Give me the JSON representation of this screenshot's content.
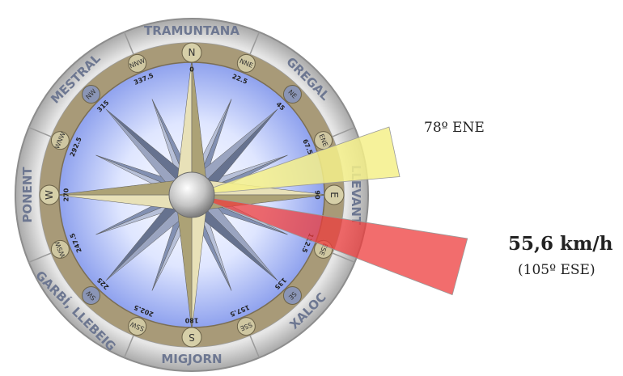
{
  "winds": [
    "TRAMUNTANA",
    "GREGAL",
    "LLEVANT",
    "XALOC",
    "MIGJORN",
    "GARBÍ, LLEBEIG",
    "PONENT",
    "MESTRAL"
  ],
  "points16": [
    "N",
    "NNE",
    "NE",
    "ENE",
    "E",
    "ESE",
    "SE",
    "SSE",
    "S",
    "SSW",
    "SW",
    "WSW",
    "W",
    "WNW",
    "NW",
    "NNW"
  ],
  "degrees": [
    "0",
    "22.5",
    "45",
    "67.5",
    "90",
    "112.5",
    "135",
    "157.5",
    "180",
    "202.5",
    "225",
    "247.5",
    "270",
    "292.5",
    "315",
    "337.5"
  ],
  "arrows": {
    "direction": {
      "deg": 78,
      "color": "#f4f08a",
      "label": "78º ENE"
    },
    "wind": {
      "deg": 105,
      "color": "#ee3c3c",
      "speed": "55,6 km/h",
      "label": "(105º ESE)"
    }
  },
  "colors": {
    "ring": "#cfcfcf",
    "band": "#a89a78",
    "sky": "#b8c8ff",
    "rose_main": "#c9c08e",
    "rose_diag": "#7f8aa8"
  }
}
